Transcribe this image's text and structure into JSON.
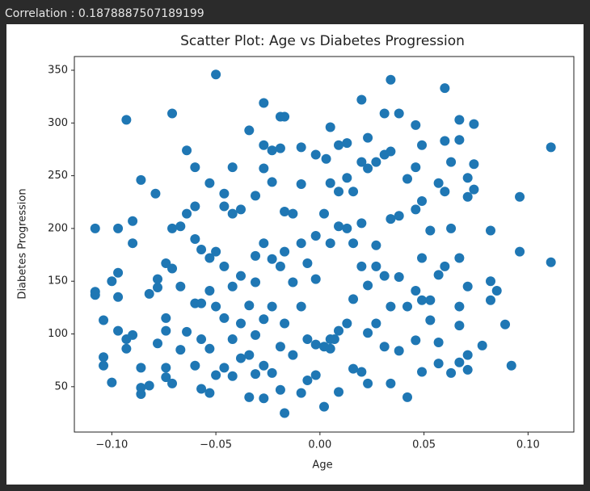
{
  "output_text": "Correlation : 0.1878887507189199",
  "chart_data": {
    "type": "scatter",
    "title": "Scatter Plot: Age vs Diabetes Progression",
    "x_label": "Age",
    "y_label": "Diabetes Progression",
    "color": "#1f77b4",
    "xlim": [
      -0.118,
      0.122
    ],
    "ylim": [
      7,
      363
    ],
    "xticks": [
      {
        "value": -0.1,
        "label": "−0.10"
      },
      {
        "value": -0.05,
        "label": "−0.05"
      },
      {
        "value": 0,
        "label": "0.00"
      },
      {
        "value": 0.05,
        "label": "0.05"
      },
      {
        "value": 0.1,
        "label": "0.10"
      }
    ],
    "yticks": [
      50,
      100,
      150,
      200,
      250,
      300,
      350
    ],
    "x": [
      -0.108,
      -0.108,
      -0.108,
      -0.104,
      -0.104,
      -0.104,
      -0.1,
      -0.1,
      -0.097,
      -0.097,
      -0.097,
      -0.097,
      -0.093,
      -0.093,
      -0.093,
      -0.09,
      -0.09,
      -0.09,
      -0.086,
      -0.086,
      -0.086,
      -0.086,
      -0.082,
      -0.082,
      -0.079,
      -0.078,
      -0.078,
      -0.078,
      -0.074,
      -0.074,
      -0.074,
      -0.074,
      -0.074,
      -0.071,
      -0.071,
      -0.071,
      -0.071,
      -0.067,
      -0.067,
      -0.067,
      -0.064,
      -0.064,
      -0.064,
      -0.06,
      -0.06,
      -0.06,
      -0.06,
      -0.06,
      -0.057,
      -0.057,
      -0.057,
      -0.057,
      -0.053,
      -0.053,
      -0.053,
      -0.053,
      -0.053,
      -0.05,
      -0.05,
      -0.05,
      -0.05,
      -0.046,
      -0.046,
      -0.046,
      -0.046,
      -0.046,
      -0.042,
      -0.042,
      -0.042,
      -0.042,
      -0.042,
      -0.038,
      -0.038,
      -0.038,
      -0.038,
      -0.034,
      -0.034,
      -0.034,
      -0.034,
      -0.031,
      -0.031,
      -0.031,
      -0.031,
      -0.031,
      -0.027,
      -0.027,
      -0.027,
      -0.027,
      -0.027,
      -0.027,
      -0.027,
      -0.023,
      -0.023,
      -0.023,
      -0.023,
      -0.023,
      -0.019,
      -0.019,
      -0.019,
      -0.019,
      -0.019,
      -0.017,
      -0.017,
      -0.017,
      -0.017,
      -0.017,
      -0.013,
      -0.013,
      -0.013,
      -0.009,
      -0.009,
      -0.009,
      -0.009,
      -0.009,
      -0.006,
      -0.006,
      -0.006,
      -0.002,
      -0.002,
      -0.002,
      -0.002,
      -0.002,
      0.002,
      0.002,
      0.002,
      0.003,
      0.005,
      0.005,
      0.005,
      0.005,
      0.005,
      0.007,
      0.009,
      0.009,
      0.009,
      0.009,
      0.009,
      0.013,
      0.013,
      0.013,
      0.013,
      0.016,
      0.016,
      0.016,
      0.016,
      0.02,
      0.02,
      0.02,
      0.02,
      0.02,
      0.023,
      0.023,
      0.023,
      0.023,
      0.023,
      0.027,
      0.027,
      0.027,
      0.027,
      0.031,
      0.031,
      0.031,
      0.031,
      0.034,
      0.034,
      0.034,
      0.034,
      0.034,
      0.038,
      0.038,
      0.038,
      0.038,
      0.042,
      0.042,
      0.042,
      0.046,
      0.046,
      0.046,
      0.046,
      0.046,
      0.049,
      0.049,
      0.049,
      0.049,
      0.049,
      0.053,
      0.053,
      0.053,
      0.057,
      0.057,
      0.057,
      0.057,
      0.06,
      0.06,
      0.06,
      0.06,
      0.063,
      0.063,
      0.063,
      0.067,
      0.067,
      0.067,
      0.067,
      0.067,
      0.067,
      0.071,
      0.071,
      0.071,
      0.071,
      0.071,
      0.074,
      0.074,
      0.074,
      0.078,
      0.082,
      0.082,
      0.082,
      0.085,
      0.089,
      0.092,
      0.096,
      0.096,
      0.111,
      0.111
    ],
    "values": [
      200,
      140,
      137,
      113,
      78,
      70,
      54,
      150,
      158,
      135,
      103,
      200,
      303,
      95,
      86,
      186,
      207,
      99,
      246,
      68,
      49,
      43,
      51,
      138,
      233,
      144,
      152,
      91,
      167,
      115,
      103,
      68,
      59,
      309,
      162,
      200,
      53,
      202,
      145,
      85,
      274,
      214,
      102,
      258,
      221,
      190,
      129,
      70,
      180,
      129,
      95,
      48,
      243,
      172,
      141,
      86,
      44,
      346,
      178,
      126,
      61,
      233,
      221,
      164,
      115,
      68,
      258,
      214,
      145,
      95,
      60,
      218,
      155,
      110,
      77,
      293,
      127,
      80,
      40,
      231,
      174,
      149,
      99,
      62,
      319,
      279,
      257,
      186,
      114,
      70,
      39,
      274,
      244,
      171,
      126,
      63,
      306,
      276,
      164,
      88,
      47,
      306,
      25,
      178,
      216,
      110,
      214,
      149,
      80,
      277,
      242,
      186,
      126,
      44,
      167,
      95,
      56,
      270,
      193,
      152,
      90,
      61,
      31,
      88,
      214,
      266,
      296,
      243,
      186,
      95,
      86,
      95,
      279,
      235,
      202,
      103,
      45,
      281,
      248,
      200,
      110,
      235,
      186,
      133,
      67,
      322,
      263,
      205,
      164,
      64,
      286,
      257,
      146,
      101,
      53,
      263,
      184,
      164,
      110,
      309,
      270,
      155,
      88,
      341,
      273,
      209,
      126,
      53,
      309,
      212,
      154,
      84,
      247,
      126,
      40,
      298,
      258,
      218,
      141,
      94,
      279,
      226,
      172,
      132,
      64,
      198,
      132,
      113,
      243,
      156,
      92,
      72,
      333,
      283,
      235,
      164,
      263,
      200,
      63,
      303,
      284,
      172,
      126,
      108,
      73,
      248,
      230,
      145,
      80,
      66,
      299,
      237,
      261,
      89,
      198,
      150,
      132,
      141,
      109,
      70,
      230,
      178,
      277,
      168
    ]
  }
}
